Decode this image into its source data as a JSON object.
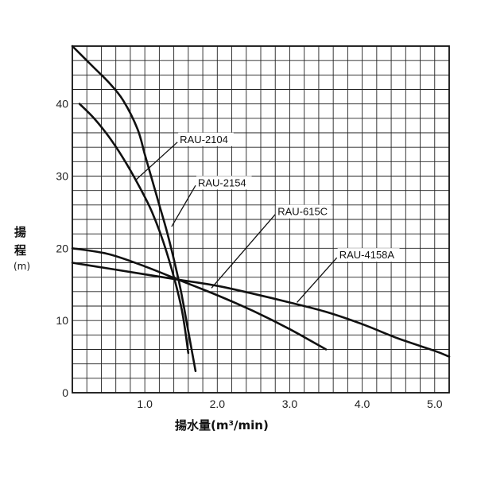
{
  "chart_data": {
    "type": "line",
    "title": "",
    "xlabel": "揚水量(m³/min)",
    "ylabel_line1": "揚",
    "ylabel_line2": "程",
    "ylabel_unit": "(m)",
    "xlim": [
      0,
      5.2
    ],
    "ylim": [
      0,
      48
    ],
    "x_ticks": [
      1.0,
      2.0,
      3.0,
      4.0,
      5.0
    ],
    "x_tick_labels": [
      "1.0",
      "2.0",
      "3.0",
      "4.0",
      "5.0"
    ],
    "y_ticks": [
      0,
      10,
      20,
      30,
      40
    ],
    "y_tick_labels": [
      "0",
      "10",
      "20",
      "30",
      "40"
    ],
    "grid": true,
    "grid_x_step": 0.2,
    "grid_y_step": 2,
    "colors": {
      "line": "#111111",
      "grid": "#222222",
      "background": "#ffffff"
    },
    "series": [
      {
        "name": "RAU-2104",
        "x": [
          0.1,
          0.3,
          0.5,
          0.7,
          0.9,
          1.1,
          1.3,
          1.5,
          1.6
        ],
        "y": [
          40,
          38,
          35.5,
          32.5,
          29,
          25,
          19.5,
          12,
          5.5
        ]
      },
      {
        "name": "RAU-2154",
        "x": [
          0.0,
          0.3,
          0.5,
          0.7,
          0.9,
          1.0,
          1.1,
          1.2,
          1.3,
          1.4,
          1.5,
          1.6,
          1.7
        ],
        "y": [
          48,
          45,
          43,
          40.5,
          36.5,
          33,
          29.5,
          26,
          22.5,
          18.5,
          14,
          8.5,
          3
        ]
      },
      {
        "name": "RAU-615C",
        "x": [
          0.0,
          0.5,
          1.0,
          1.5,
          2.0,
          2.5,
          3.0,
          3.5
        ],
        "y": [
          20,
          19.2,
          17.5,
          15.5,
          13.5,
          11.3,
          8.8,
          6
        ]
      },
      {
        "name": "RAU-4158A",
        "x": [
          0.0,
          0.5,
          1.0,
          1.5,
          2.0,
          2.5,
          3.0,
          3.5,
          4.0,
          4.5,
          5.0,
          5.2
        ],
        "y": [
          18,
          17.2,
          16.4,
          15.6,
          14.8,
          13.7,
          12.5,
          11.2,
          9.5,
          7.5,
          5.8,
          5
        ]
      }
    ],
    "annotations": [
      {
        "series": "RAU-2104",
        "label": "RAU-2104",
        "point": [
          0.88,
          29.5
        ],
        "label_at": [
          1.45,
          34.7
        ]
      },
      {
        "series": "RAU-2154",
        "label": "RAU-2154",
        "point": [
          1.37,
          23
        ],
        "label_at": [
          1.7,
          28.7
        ]
      },
      {
        "series": "RAU-615C",
        "label": "RAU-615C",
        "point": [
          1.92,
          14.5
        ],
        "label_at": [
          2.8,
          24.7
        ]
      },
      {
        "series": "RAU-4158A",
        "label": "RAU-4158A",
        "point": [
          3.1,
          12.5
        ],
        "label_at": [
          3.65,
          18.7
        ]
      }
    ]
  }
}
